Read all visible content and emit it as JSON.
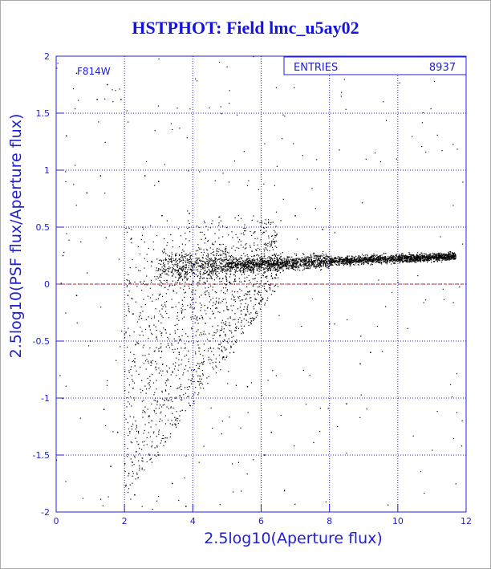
{
  "chart_data": {
    "type": "scatter",
    "title": "HSTPHOT: Field lmc_u5ay02",
    "xlabel": "2.5log10(Aperture flux)",
    "ylabel": "2.5log10(PSF flux/Aperture flux)",
    "xlim": [
      0,
      12
    ],
    "ylim": [
      -2,
      2
    ],
    "xticks": [
      0,
      2,
      4,
      6,
      8,
      10,
      12
    ],
    "yticks": [
      -2,
      -1.5,
      -1,
      -0.5,
      0,
      0.5,
      1,
      1.5,
      2
    ],
    "grid": true,
    "filter_label": "F814W",
    "stats": {
      "label": "ENTRIES",
      "value": "8937"
    },
    "reference_line": {
      "y": 0,
      "color": "#d02020",
      "style": "dashed"
    },
    "colors": {
      "text": "#2020d0",
      "grid": "#2020d0",
      "points": "#000000",
      "reference": "#d02020"
    },
    "point_count": 8937,
    "sample_points": [
      [
        0.3,
        1.3
      ],
      [
        0.6,
        1.85
      ],
      [
        1.2,
        1.62
      ],
      [
        1.5,
        1.75
      ],
      [
        1.9,
        1.62
      ],
      [
        0.9,
        0.8
      ],
      [
        1.3,
        0.95
      ],
      [
        2.6,
        0.95
      ],
      [
        3.0,
        0.9
      ],
      [
        3.1,
        0.6
      ],
      [
        2.2,
        0.4
      ],
      [
        2.8,
        0.2
      ],
      [
        2.1,
        -0.1
      ],
      [
        2.5,
        -0.3
      ],
      [
        3.2,
        -0.4
      ],
      [
        3.6,
        -0.6
      ],
      [
        3.9,
        -0.9
      ],
      [
        2.8,
        -1.2
      ],
      [
        3.0,
        -1.5
      ],
      [
        3.4,
        -1.75
      ],
      [
        2.3,
        -1.85
      ],
      [
        3.8,
        -1.95
      ],
      [
        1.4,
        -1.1
      ],
      [
        1.6,
        -1.6
      ],
      [
        1.0,
        -0.5
      ],
      [
        0.6,
        -0.1
      ],
      [
        1.8,
        -1.3
      ],
      [
        2.4,
        -1.7
      ],
      [
        4.0,
        0.15
      ],
      [
        4.5,
        0.2
      ],
      [
        5.0,
        0.18
      ],
      [
        5.5,
        0.16
      ],
      [
        6.0,
        0.16
      ],
      [
        6.5,
        0.17
      ],
      [
        7.0,
        0.18
      ],
      [
        7.5,
        0.19
      ],
      [
        8.0,
        0.2
      ],
      [
        8.5,
        0.2
      ],
      [
        9.0,
        0.21
      ],
      [
        9.5,
        0.22
      ],
      [
        10.0,
        0.22
      ],
      [
        10.5,
        0.23
      ],
      [
        11.0,
        0.24
      ],
      [
        11.5,
        0.25
      ],
      [
        4.2,
        -0.3
      ],
      [
        4.8,
        -0.45
      ],
      [
        5.2,
        -0.6
      ],
      [
        5.6,
        -0.9
      ],
      [
        6.5,
        -0.5
      ],
      [
        8.0,
        -0.35
      ],
      [
        8.9,
        -0.7
      ],
      [
        9.2,
        -0.6
      ],
      [
        7.0,
        0.6
      ],
      [
        7.8,
        0.48
      ],
      [
        3.9,
        0.62
      ],
      [
        8.5,
        -1.05
      ],
      [
        6.1,
        -1.5
      ],
      [
        6.3,
        -1.3
      ],
      [
        0.2,
        0.25
      ],
      [
        5.0,
        -0.2
      ]
    ]
  }
}
